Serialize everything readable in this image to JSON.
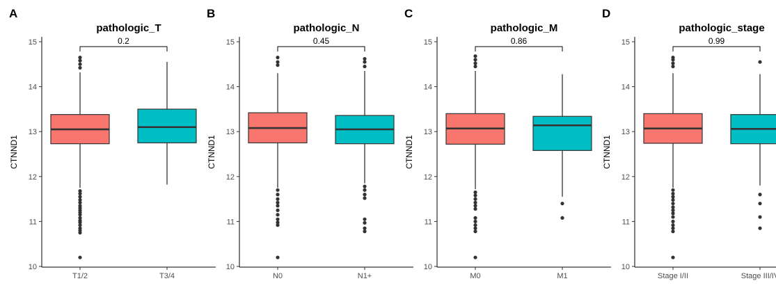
{
  "chart_data": [
    {
      "type": "box",
      "panel_label": "A",
      "title": "pathologic_T",
      "ylabel": "CTNND1",
      "ylim": [
        10,
        15
      ],
      "yticks": [
        10,
        11,
        12,
        13,
        14,
        15
      ],
      "categories": [
        "T1/2",
        "T3/4"
      ],
      "colors": [
        "#f8766d",
        "#00bfc4"
      ],
      "p_value": "0.2",
      "boxes": [
        {
          "q1": 12.73,
          "median": 13.05,
          "q3": 13.38,
          "whisker_low": 11.75,
          "whisker_high": 14.32,
          "outliers": [
            14.42,
            14.5,
            14.58,
            14.65,
            11.68,
            11.62,
            11.55,
            11.48,
            11.42,
            11.35,
            11.3,
            11.25,
            11.2,
            11.15,
            11.08,
            11.02,
            10.98,
            10.92,
            10.85,
            10.8,
            10.75,
            10.2
          ]
        },
        {
          "q1": 12.75,
          "median": 13.1,
          "q3": 13.5,
          "whisker_low": 11.82,
          "whisker_high": 14.55,
          "outliers": []
        }
      ]
    },
    {
      "type": "box",
      "panel_label": "B",
      "title": "pathologic_N",
      "ylabel": "CTNND1",
      "ylim": [
        10,
        15
      ],
      "yticks": [
        10,
        11,
        12,
        13,
        14,
        15
      ],
      "categories": [
        "N0",
        "N1+"
      ],
      "colors": [
        "#f8766d",
        "#00bfc4"
      ],
      "p_value": "0.45",
      "boxes": [
        {
          "q1": 12.75,
          "median": 13.08,
          "q3": 13.42,
          "whisker_low": 11.75,
          "whisker_high": 14.3,
          "outliers": [
            14.48,
            14.55,
            14.65,
            11.7,
            11.6,
            11.5,
            11.42,
            11.35,
            11.25,
            11.15,
            11.05,
            10.98,
            10.92,
            10.2
          ]
        },
        {
          "q1": 12.73,
          "median": 13.05,
          "q3": 13.36,
          "whisker_low": 11.85,
          "whisker_high": 14.35,
          "outliers": [
            14.45,
            14.55,
            14.62,
            11.78,
            11.7,
            11.6,
            11.52,
            11.05,
            10.97,
            10.85,
            10.78
          ]
        }
      ]
    },
    {
      "type": "box",
      "panel_label": "C",
      "title": "pathologic_M",
      "ylabel": "CTNND1",
      "ylim": [
        10,
        15
      ],
      "yticks": [
        10,
        11,
        12,
        13,
        14,
        15
      ],
      "categories": [
        "M0",
        "M1"
      ],
      "colors": [
        "#f8766d",
        "#00bfc4"
      ],
      "p_value": "0.86",
      "boxes": [
        {
          "q1": 12.72,
          "median": 13.07,
          "q3": 13.4,
          "whisker_low": 11.72,
          "whisker_high": 14.35,
          "outliers": [
            14.45,
            14.52,
            14.6,
            14.68,
            11.65,
            11.58,
            11.5,
            11.42,
            11.35,
            11.28,
            11.08,
            11.0,
            10.92,
            10.85,
            10.78,
            10.2
          ]
        },
        {
          "q1": 12.58,
          "median": 13.14,
          "q3": 13.34,
          "whisker_low": 11.55,
          "whisker_high": 14.28,
          "outliers": [
            11.4,
            11.08
          ]
        }
      ]
    },
    {
      "type": "box",
      "panel_label": "D",
      "title": "pathologic_stage",
      "ylabel": "CTNND1",
      "ylim": [
        10,
        15
      ],
      "yticks": [
        10,
        11,
        12,
        13,
        14,
        15
      ],
      "categories": [
        "Stage I/II",
        "Stage III/IV"
      ],
      "colors": [
        "#f8766d",
        "#00bfc4"
      ],
      "p_value": "0.99",
      "boxes": [
        {
          "q1": 12.74,
          "median": 13.07,
          "q3": 13.4,
          "whisker_low": 11.75,
          "whisker_high": 14.3,
          "outliers": [
            14.45,
            14.52,
            14.6,
            14.65,
            11.7,
            11.62,
            11.55,
            11.48,
            11.4,
            11.32,
            11.25,
            11.18,
            11.1,
            11.0,
            10.92,
            10.85,
            10.78,
            10.2
          ]
        },
        {
          "q1": 12.73,
          "median": 13.06,
          "q3": 13.38,
          "whisker_low": 11.8,
          "whisker_high": 14.28,
          "outliers": [
            14.55,
            11.6,
            11.4,
            11.1,
            10.85
          ]
        }
      ]
    }
  ]
}
